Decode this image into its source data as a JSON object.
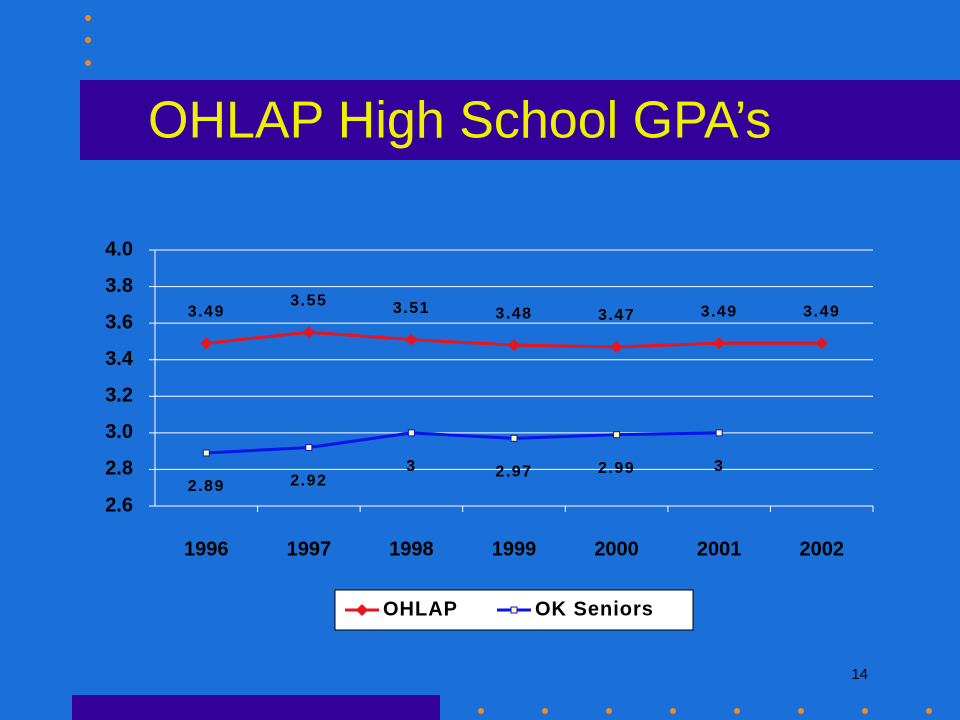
{
  "title": "OHLAP High School GPA’s",
  "page_number": "14",
  "chart_data": {
    "type": "line",
    "categories": [
      "1996",
      "1997",
      "1998",
      "1999",
      "2000",
      "2001",
      "2002"
    ],
    "series": [
      {
        "name": "OHLAP",
        "color": "#e8141e",
        "values": [
          3.49,
          3.55,
          3.51,
          3.48,
          3.47,
          3.49,
          3.49
        ]
      },
      {
        "name": "OK Seniors",
        "color": "#0a14e6",
        "values": [
          2.89,
          2.92,
          3,
          2.97,
          2.99,
          3,
          null
        ]
      }
    ],
    "ylim": [
      2.6,
      4.0
    ],
    "yticks": [
      2.6,
      2.8,
      {
        "value": 3.0,
        "label": "3.0"
      },
      3.2,
      3.4,
      3.6,
      3.8,
      {
        "value": 4.0,
        "label": "4.0"
      }
    ],
    "grid": true,
    "legend": "bottom"
  }
}
